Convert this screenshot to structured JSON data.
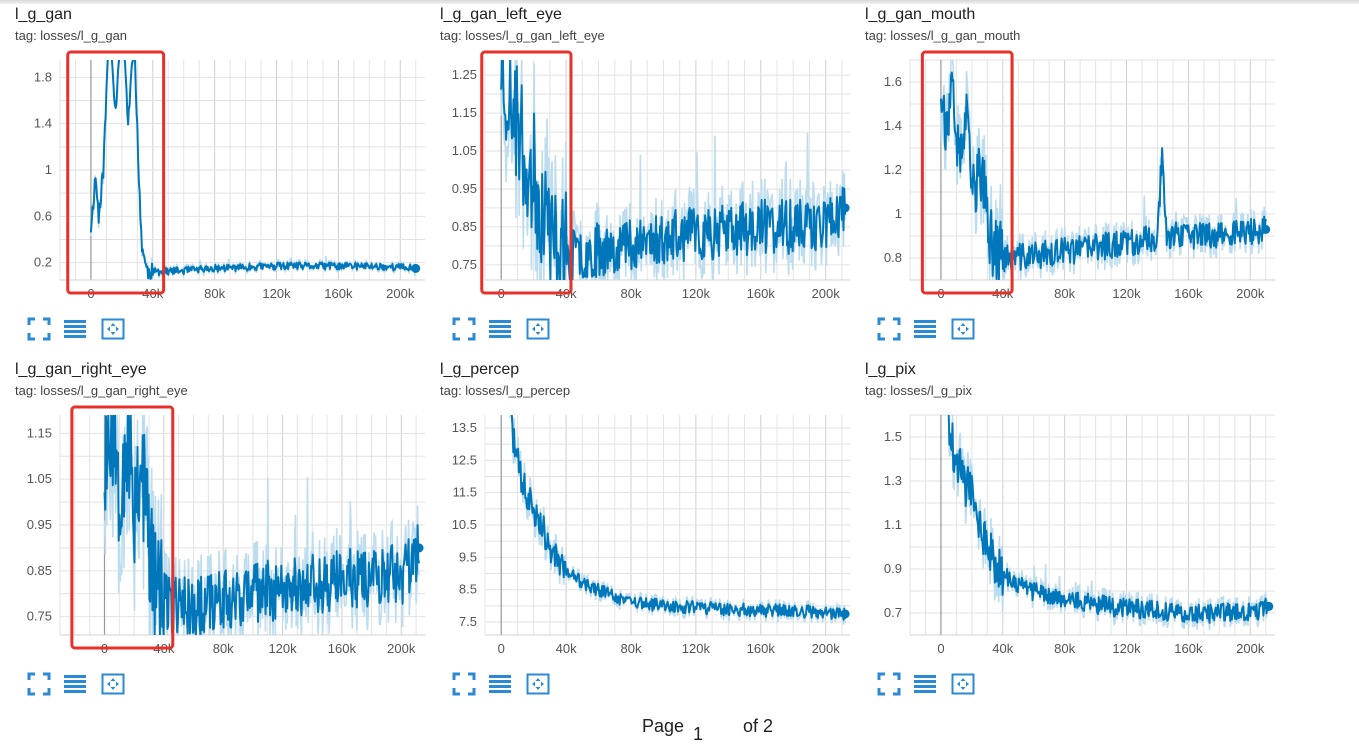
{
  "accent_color": "#0077bb",
  "band_color": "#bcdcef",
  "highlight_color": "#e8302b",
  "toolbar_icons": [
    "expand-icon",
    "list-icon",
    "fit-domain-icon"
  ],
  "pager": {
    "label": "Page",
    "current": "1",
    "of_label": "of 2"
  },
  "chart_data": [
    {
      "type": "line",
      "title": "l_g_gan",
      "tag": "tag: losses/l_g_gan",
      "xlim": [
        -20000,
        216000
      ],
      "ylim": [
        0.05,
        1.95
      ],
      "xticks": [
        0,
        40000,
        80000,
        120000,
        160000,
        200000
      ],
      "xtick_labels": [
        "0",
        "40k",
        "80k",
        "120k",
        "160k",
        "200k"
      ],
      "yticks": [
        0.2,
        0.6,
        1,
        1.4,
        1.8
      ],
      "ytick_labels": [
        "0.2",
        "0.6",
        "1",
        "1.4",
        "1.8"
      ],
      "series": [
        {
          "values_xy": [
            [
              0,
              0.5
            ],
            [
              3000,
              0.95
            ],
            [
              5000,
              0.6
            ],
            [
              8000,
              1.0
            ],
            [
              12000,
              2.3
            ],
            [
              16000,
              1.5
            ],
            [
              20000,
              2.5
            ],
            [
              24000,
              1.4
            ],
            [
              28000,
              2.2
            ],
            [
              31000,
              0.9
            ],
            [
              33000,
              0.35
            ],
            [
              36000,
              0.13
            ],
            [
              40000,
              0.12
            ],
            [
              60000,
              0.13
            ],
            [
              80000,
              0.15
            ],
            [
              100000,
              0.16
            ],
            [
              120000,
              0.17
            ],
            [
              140000,
              0.17
            ],
            [
              160000,
              0.17
            ],
            [
              180000,
              0.17
            ],
            [
              200000,
              0.16
            ],
            [
              210000,
              0.15
            ]
          ]
        }
      ],
      "noise": 0.035,
      "seed": 11,
      "highlight_x": [
        -15000,
        47000
      ]
    },
    {
      "type": "line",
      "title": "l_g_gan_left_eye",
      "tag": "tag: losses/l_g_gan_left_eye",
      "xlim": [
        -10000,
        215000
      ],
      "ylim": [
        0.71,
        1.29
      ],
      "xticks": [
        0,
        40000,
        80000,
        120000,
        160000,
        200000
      ],
      "xtick_labels": [
        "0",
        "40k",
        "80k",
        "120k",
        "160k",
        "200k"
      ],
      "yticks": [
        0.75,
        0.85,
        0.95,
        1.05,
        1.15,
        1.25
      ],
      "ytick_labels": [
        "0.75",
        "0.85",
        "0.95",
        "1.05",
        "1.15",
        "1.25"
      ],
      "series": [
        {
          "values_xy": [
            [
              0,
              1.3
            ],
            [
              4000,
              1.2
            ],
            [
              8000,
              1.15
            ],
            [
              14000,
              1.05
            ],
            [
              20000,
              0.98
            ],
            [
              26000,
              0.9
            ],
            [
              32000,
              0.8
            ],
            [
              40000,
              0.77
            ],
            [
              60000,
              0.79
            ],
            [
              80000,
              0.81
            ],
            [
              100000,
              0.82
            ],
            [
              120000,
              0.83
            ],
            [
              140000,
              0.84
            ],
            [
              160000,
              0.85
            ],
            [
              180000,
              0.85
            ],
            [
              200000,
              0.86
            ],
            [
              212000,
              0.9
            ]
          ]
        }
      ],
      "noise": 0.08,
      "seed": 23,
      "highlight_x": [
        -12000,
        43000
      ]
    },
    {
      "type": "line",
      "title": "l_g_gan_mouth",
      "tag": "tag: losses/l_g_gan_mouth",
      "xlim": [
        -20000,
        216000
      ],
      "ylim": [
        0.7,
        1.7
      ],
      "xticks": [
        0,
        40000,
        80000,
        120000,
        160000,
        200000
      ],
      "xtick_labels": [
        "0",
        "40k",
        "80k",
        "120k",
        "160k",
        "200k"
      ],
      "yticks": [
        0.8,
        1,
        1.2,
        1.4,
        1.6
      ],
      "ytick_labels": [
        "0.8",
        "1",
        "1.2",
        "1.4",
        "1.6"
      ],
      "series": [
        {
          "values_xy": [
            [
              0,
              1.6
            ],
            [
              4000,
              1.35
            ],
            [
              8000,
              1.55
            ],
            [
              12000,
              1.2
            ],
            [
              16000,
              1.45
            ],
            [
              20000,
              1.1
            ],
            [
              26000,
              1.2
            ],
            [
              32000,
              0.88
            ],
            [
              40000,
              0.8
            ],
            [
              60000,
              0.81
            ],
            [
              80000,
              0.83
            ],
            [
              100000,
              0.85
            ],
            [
              120000,
              0.87
            ],
            [
              140000,
              0.89
            ],
            [
              143000,
              1.3
            ],
            [
              146000,
              0.9
            ],
            [
              160000,
              0.9
            ],
            [
              180000,
              0.91
            ],
            [
              200000,
              0.92
            ],
            [
              210000,
              0.93
            ]
          ]
        }
      ],
      "noise": 0.07,
      "seed": 37,
      "highlight_x": [
        -12000,
        46000
      ]
    },
    {
      "type": "line",
      "title": "l_g_gan_right_eye",
      "tag": "tag: losses/l_g_gan_right_eye",
      "xlim": [
        -30000,
        216000
      ],
      "ylim": [
        0.71,
        1.19
      ],
      "xticks": [
        0,
        40000,
        80000,
        120000,
        160000,
        200000
      ],
      "xtick_labels": [
        "0",
        "40k",
        "80k",
        "120k",
        "160k",
        "200k"
      ],
      "yticks": [
        0.75,
        0.85,
        0.95,
        1.05,
        1.15
      ],
      "ytick_labels": [
        "0.75",
        "0.85",
        "0.95",
        "1.05",
        "1.15"
      ],
      "series": [
        {
          "values_xy": [
            [
              0,
              1.1
            ],
            [
              5000,
              1.2
            ],
            [
              10000,
              1.05
            ],
            [
              15000,
              1.15
            ],
            [
              20000,
              1.0
            ],
            [
              25000,
              1.1
            ],
            [
              30000,
              0.9
            ],
            [
              36000,
              0.8
            ],
            [
              40000,
              0.78
            ],
            [
              60000,
              0.77
            ],
            [
              80000,
              0.79
            ],
            [
              100000,
              0.8
            ],
            [
              120000,
              0.81
            ],
            [
              140000,
              0.82
            ],
            [
              160000,
              0.83
            ],
            [
              180000,
              0.84
            ],
            [
              200000,
              0.84
            ],
            [
              212000,
              0.9
            ]
          ]
        }
      ],
      "noise": 0.075,
      "seed": 53,
      "highlight_x": [
        -22000,
        46000
      ]
    },
    {
      "type": "line",
      "title": "l_g_percep",
      "tag": "tag: losses/l_g_percep",
      "xlim": [
        -10000,
        215000
      ],
      "ylim": [
        7.1,
        13.9
      ],
      "xticks": [
        0,
        40000,
        80000,
        120000,
        160000,
        200000
      ],
      "xtick_labels": [
        "0",
        "40k",
        "80k",
        "120k",
        "160k",
        "200k"
      ],
      "yticks": [
        7.5,
        8.5,
        9.5,
        10.5,
        11.5,
        12.5,
        13.5
      ],
      "ytick_labels": [
        "7.5",
        "8.5",
        "9.5",
        "10.5",
        "11.5",
        "12.5",
        "13.5"
      ],
      "series": [
        {
          "values_xy": [
            [
              5000,
              14.2
            ],
            [
              8000,
              13.0
            ],
            [
              12000,
              12.0
            ],
            [
              16000,
              11.4
            ],
            [
              20000,
              11.0
            ],
            [
              25000,
              10.6
            ],
            [
              30000,
              9.7
            ],
            [
              40000,
              9.1
            ],
            [
              50000,
              8.7
            ],
            [
              60000,
              8.5
            ],
            [
              70000,
              8.3
            ],
            [
              80000,
              8.1
            ],
            [
              100000,
              8.0
            ],
            [
              120000,
              7.95
            ],
            [
              140000,
              7.9
            ],
            [
              160000,
              7.85
            ],
            [
              180000,
              7.85
            ],
            [
              200000,
              7.8
            ],
            [
              212000,
              7.75
            ]
          ]
        }
      ],
      "noise": 0.22,
      "seed": 71,
      "highlight_x": null
    },
    {
      "type": "line",
      "title": "l_g_pix",
      "tag": "tag: losses/l_g_pix",
      "xlim": [
        -20000,
        216000
      ],
      "ylim": [
        0.6,
        1.6
      ],
      "xticks": [
        0,
        40000,
        80000,
        120000,
        160000,
        200000
      ],
      "xtick_labels": [
        "0",
        "40k",
        "80k",
        "120k",
        "160k",
        "200k"
      ],
      "yticks": [
        0.7,
        0.9,
        1.1,
        1.3,
        1.5
      ],
      "ytick_labels": [
        "0.7",
        "0.9",
        "1.1",
        "1.3",
        "1.5"
      ],
      "series": [
        {
          "values_xy": [
            [
              3000,
              1.7
            ],
            [
              6000,
              1.5
            ],
            [
              10000,
              1.4
            ],
            [
              15000,
              1.3
            ],
            [
              20000,
              1.25
            ],
            [
              25000,
              1.1
            ],
            [
              30000,
              1.0
            ],
            [
              40000,
              0.88
            ],
            [
              50000,
              0.82
            ],
            [
              60000,
              0.8
            ],
            [
              80000,
              0.76
            ],
            [
              100000,
              0.74
            ],
            [
              120000,
              0.72
            ],
            [
              140000,
              0.71
            ],
            [
              160000,
              0.7
            ],
            [
              180000,
              0.7
            ],
            [
              200000,
              0.7
            ],
            [
              212000,
              0.73
            ]
          ]
        }
      ],
      "noise": 0.05,
      "seed": 89,
      "highlight_x": null
    }
  ]
}
